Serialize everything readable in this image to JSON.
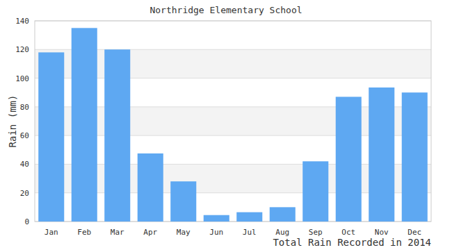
{
  "chart_data": {
    "type": "bar",
    "title": "Northridge Elementary School",
    "xlabel": "Total Rain Recorded in 2014",
    "ylabel": "Rain (mm)",
    "categories": [
      "Jan",
      "Feb",
      "Mar",
      "Apr",
      "May",
      "Jun",
      "Jul",
      "Aug",
      "Sep",
      "Oct",
      "Nov",
      "Dec"
    ],
    "values": [
      118,
      135,
      120,
      47.5,
      28,
      4.5,
      6.5,
      10,
      42,
      87,
      93.5,
      90
    ],
    "color": "#5ea8f2",
    "ylim": [
      0,
      140
    ],
    "yticks": [
      0,
      20,
      40,
      60,
      80,
      100,
      120,
      140
    ],
    "grid": true
  }
}
